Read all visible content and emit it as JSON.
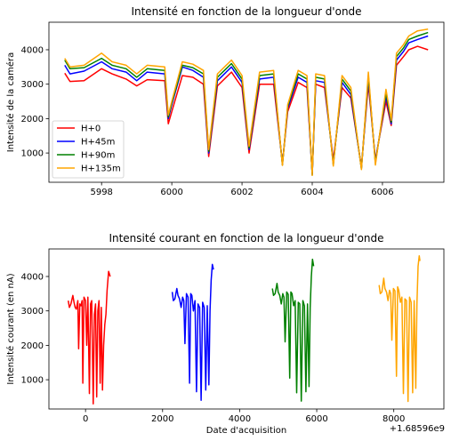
{
  "chart_data": [
    {
      "type": "line",
      "title": "Intensité en fonction de la longueur d'onde",
      "xlabel": "",
      "ylabel": "Intensité de la caméra",
      "xlim": [
        5996.5,
        6007.75
      ],
      "ylim": [
        150,
        4800
      ],
      "xticks": [
        5998,
        6000,
        6002,
        6004,
        6006
      ],
      "yticks": [
        1000,
        2000,
        3000,
        4000
      ],
      "legend": "lower-left",
      "x": [
        5996.95,
        5997.1,
        5997.5,
        5998.0,
        5998.3,
        5998.7,
        5999.0,
        5999.3,
        5999.8,
        5999.9,
        6000.0,
        6000.3,
        6000.6,
        6000.9,
        6001.05,
        6001.3,
        6001.7,
        6002.0,
        6002.2,
        6002.5,
        6002.9,
        6003.15,
        6003.3,
        6003.6,
        6003.85,
        6004.0,
        6004.1,
        6004.35,
        6004.6,
        6004.85,
        6005.1,
        6005.4,
        6005.6,
        6005.8,
        6006.1,
        6006.25,
        6006.4,
        6006.6,
        6006.75,
        6007.0,
        6007.3
      ],
      "series": [
        {
          "name": "H+0",
          "color": "#ff0000",
          "values": [
            3320,
            3080,
            3100,
            3450,
            3300,
            3150,
            2950,
            3130,
            3100,
            1850,
            2200,
            3250,
            3200,
            3000,
            900,
            2950,
            3350,
            2900,
            1000,
            3000,
            3000,
            700,
            2200,
            3050,
            2900,
            400,
            3000,
            2900,
            800,
            2900,
            2600,
            600,
            3000,
            800,
            2500,
            1800,
            3550,
            3800,
            4000,
            4100,
            4000
          ]
        },
        {
          "name": "H+45m",
          "color": "#0000ff",
          "values": [
            3550,
            3300,
            3380,
            3650,
            3450,
            3350,
            3100,
            3350,
            3300,
            2000,
            2400,
            3500,
            3400,
            3200,
            1000,
            3100,
            3500,
            3050,
            1100,
            3150,
            3200,
            680,
            2300,
            3200,
            3050,
            380,
            3100,
            3050,
            700,
            3050,
            2700,
            560,
            3150,
            750,
            2650,
            1850,
            3700,
            3950,
            4200,
            4300,
            4400
          ]
        },
        {
          "name": "H+90m",
          "color": "#008000",
          "values": [
            3700,
            3450,
            3480,
            3750,
            3550,
            3450,
            3200,
            3450,
            3400,
            2050,
            2450,
            3550,
            3480,
            3300,
            1050,
            3200,
            3600,
            3150,
            1150,
            3250,
            3300,
            650,
            2350,
            3300,
            3150,
            360,
            3200,
            3150,
            650,
            3150,
            2800,
            540,
            3250,
            700,
            2750,
            1900,
            3800,
            4050,
            4300,
            4400,
            4500
          ]
        },
        {
          "name": "H+135m",
          "color": "#ffa500",
          "values": [
            3750,
            3500,
            3550,
            3900,
            3650,
            3550,
            3300,
            3550,
            3500,
            2100,
            2500,
            3650,
            3580,
            3400,
            1100,
            3300,
            3700,
            3250,
            1200,
            3350,
            3400,
            640,
            2400,
            3400,
            3250,
            350,
            3300,
            3250,
            620,
            3250,
            2900,
            520,
            3350,
            650,
            2850,
            1950,
            3900,
            4150,
            4400,
            4550,
            4600
          ]
        }
      ]
    },
    {
      "type": "line",
      "title": "Intensité courant en fonction de la longueur d'onde",
      "xlabel": "Date d'acquisition",
      "ylabel": "Intensité courant (en nA)",
      "offset_text": "+1.68596e9",
      "xlim": [
        -950,
        9300
      ],
      "ylim": [
        150,
        4800
      ],
      "xticks": [
        0,
        2000,
        4000,
        6000,
        8000
      ],
      "yticks": [
        1000,
        2000,
        3000,
        4000
      ],
      "series": [
        {
          "name": "",
          "color": "#ff0000",
          "x": [
            -450,
            -420,
            -380,
            -330,
            -300,
            -270,
            -240,
            -200,
            -180,
            -150,
            -120,
            -90,
            -70,
            -40,
            0,
            30,
            60,
            100,
            130,
            160,
            200,
            230,
            260,
            290,
            320,
            350,
            380,
            410,
            440,
            470,
            500,
            530,
            560,
            600,
            640
          ],
          "values": [
            3300,
            3100,
            3200,
            3450,
            3250,
            3100,
            3050,
            3300,
            1900,
            3200,
            3150,
            3300,
            900,
            3400,
            3300,
            2000,
            3400,
            600,
            3200,
            3300,
            300,
            2900,
            3200,
            500,
            3000,
            3300,
            900,
            3100,
            700,
            2000,
            2600,
            2900,
            3600,
            4150,
            4000
          ]
        },
        {
          "name": "",
          "color": "#0000ff",
          "x": [
            2250,
            2280,
            2320,
            2370,
            2400,
            2440,
            2480,
            2520,
            2550,
            2580,
            2620,
            2660,
            2700,
            2730,
            2760,
            2800,
            2840,
            2880,
            2920,
            2960,
            3000,
            3040,
            3080,
            3120,
            3160,
            3200,
            3230,
            3260,
            3290,
            3320
          ],
          "values": [
            3550,
            3300,
            3350,
            3650,
            3450,
            3350,
            3100,
            3400,
            3300,
            2050,
            3500,
            3400,
            900,
            3500,
            3450,
            3000,
            3300,
            650,
            3200,
            3100,
            400,
            3250,
            3100,
            700,
            3150,
            850,
            3000,
            3900,
            4350,
            4200
          ]
        },
        {
          "name": "",
          "color": "#008000",
          "x": [
            4850,
            4880,
            4920,
            4970,
            5000,
            5040,
            5080,
            5120,
            5150,
            5180,
            5220,
            5260,
            5300,
            5330,
            5360,
            5400,
            5440,
            5480,
            5520,
            5560,
            5600,
            5640,
            5680,
            5720,
            5760,
            5800,
            5830,
            5860,
            5890,
            5920
          ],
          "values": [
            3650,
            3450,
            3500,
            3800,
            3550,
            3450,
            3200,
            3500,
            3400,
            2100,
            3550,
            3480,
            1050,
            3550,
            3500,
            3150,
            3300,
            620,
            3250,
            3200,
            380,
            3300,
            3150,
            650,
            3200,
            800,
            3100,
            4000,
            4500,
            4300
          ]
        },
        {
          "name": "",
          "color": "#ffa500",
          "x": [
            7620,
            7650,
            7690,
            7740,
            7770,
            7810,
            7850,
            7890,
            7920,
            7950,
            7990,
            8030,
            8070,
            8100,
            8130,
            8170,
            8210,
            8250,
            8290,
            8330,
            8370,
            8410,
            8450,
            8490,
            8530,
            8570,
            8600,
            8630,
            8660,
            8680
          ],
          "values": [
            3750,
            3500,
            3550,
            3950,
            3650,
            3550,
            3300,
            3600,
            3500,
            2150,
            3650,
            3580,
            1100,
            3700,
            3600,
            3250,
            3400,
            600,
            3350,
            3300,
            370,
            3400,
            3250,
            620,
            3300,
            750,
            3200,
            4300,
            4600,
            4450
          ]
        }
      ]
    }
  ]
}
